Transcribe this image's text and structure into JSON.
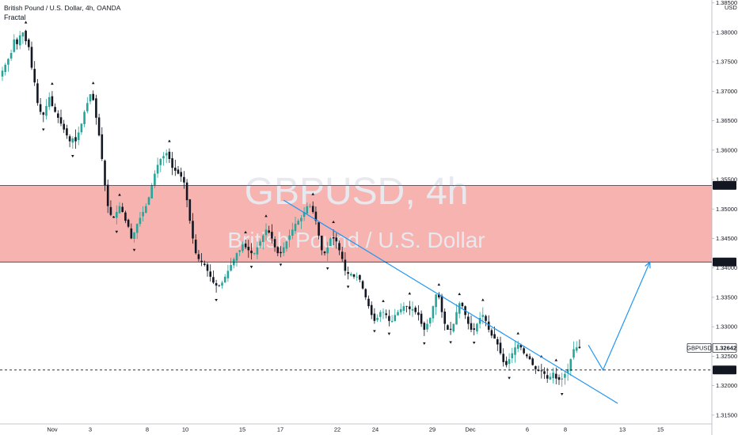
{
  "header": {
    "title": "British Pound / U.S. Dollar, 4h, OANDA",
    "indicator": "Fractal"
  },
  "watermark": {
    "symbol": "GBPUSD, 4h",
    "name": "British Pound / U.S. Dollar"
  },
  "currency": "USD",
  "colors": {
    "up": "#26a69a",
    "down": "#131722",
    "zone": "#f5a6a2",
    "trend": "#2196f3",
    "tag_dark": "#131722"
  },
  "chart_data": {
    "type": "candlestick",
    "y_axis": {
      "ticks": [
        "1.38500",
        "1.38000",
        "1.37500",
        "1.37000",
        "1.36500",
        "1.36000",
        "1.35500",
        "1.35000",
        "1.34500",
        "1.34000",
        "1.33500",
        "1.33000",
        "1.32500",
        "1.32000",
        "1.31500"
      ],
      "range": [
        1.3135,
        1.3855
      ]
    },
    "x_axis": {
      "ticks": [
        "Nov",
        "3",
        "8",
        "10",
        "15",
        "17",
        "22",
        "24",
        "29",
        "Dec",
        "6",
        "8",
        "13",
        "15"
      ]
    },
    "resistance_zone": {
      "top": 1.35401,
      "bottom": 1.341
    },
    "price_tags": [
      {
        "label": "1.35401",
        "value": 1.35401
      },
      {
        "label": "1.34100",
        "value": 1.341
      },
      {
        "label": "1.32642",
        "value": 1.32642,
        "symbol": "GBPUSD"
      },
      {
        "label": "1.32266",
        "value": 1.32266
      }
    ],
    "dashed_level": 1.32266,
    "last_price": 1.32642,
    "closes": [
      1.3735,
      1.3745,
      1.3755,
      1.3765,
      1.3788,
      1.378,
      1.3795,
      1.38,
      1.3785,
      1.3775,
      1.374,
      1.3715,
      1.368,
      1.3665,
      1.366,
      1.3675,
      1.369,
      1.3675,
      1.3665,
      1.3655,
      1.3645,
      1.3635,
      1.3625,
      1.3615,
      1.362,
      1.3615,
      1.363,
      1.3645,
      1.3665,
      1.368,
      1.3695,
      1.3685,
      1.3655,
      1.3625,
      1.3585,
      1.354,
      1.3505,
      1.349,
      1.3485,
      1.3495,
      1.3505,
      1.3495,
      1.348,
      1.347,
      1.345,
      1.346,
      1.3475,
      1.3485,
      1.3495,
      1.3505,
      1.352,
      1.354,
      1.356,
      1.3575,
      1.3585,
      1.359,
      1.3595,
      1.3585,
      1.357,
      1.3565,
      1.356,
      1.3555,
      1.3545,
      1.3515,
      1.348,
      1.345,
      1.3425,
      1.3415,
      1.341,
      1.3405,
      1.3395,
      1.3385,
      1.3375,
      1.337,
      1.337,
      1.3375,
      1.3385,
      1.3395,
      1.3405,
      1.3415,
      1.3425,
      1.343,
      1.344,
      1.3435,
      1.343,
      1.3425,
      1.3425,
      1.3435,
      1.3445,
      1.3455,
      1.3465,
      1.346,
      1.345,
      1.3435,
      1.3425,
      1.3425,
      1.3435,
      1.3445,
      1.3455,
      1.3465,
      1.3475,
      1.348,
      1.3485,
      1.3495,
      1.3505,
      1.3505,
      1.3495,
      1.348,
      1.3455,
      1.343,
      1.3425,
      1.3435,
      1.345,
      1.345,
      1.3445,
      1.343,
      1.3415,
      1.3395,
      1.339,
      1.339,
      1.3385,
      1.3385,
      1.338,
      1.3365,
      1.335,
      1.3335,
      1.332,
      1.331,
      1.3315,
      1.3325,
      1.3325,
      1.332,
      1.331,
      1.331,
      1.332,
      1.3325,
      1.333,
      1.3335,
      1.3335,
      1.333,
      1.333,
      1.3325,
      1.332,
      1.3305,
      1.3295,
      1.3305,
      1.3315,
      1.3335,
      1.3355,
      1.335,
      1.3325,
      1.3305,
      1.3295,
      1.3295,
      1.3305,
      1.3325,
      1.334,
      1.3335,
      1.332,
      1.3305,
      1.3295,
      1.3295,
      1.3305,
      1.3315,
      1.332,
      1.331,
      1.3295,
      1.3285,
      1.328,
      1.327,
      1.3255,
      1.324,
      1.3235,
      1.3245,
      1.3255,
      1.3265,
      1.327,
      1.3265,
      1.3255,
      1.325,
      1.3245,
      1.3235,
      1.3228,
      1.3225,
      1.3225,
      1.322,
      1.3212,
      1.3215,
      1.3222,
      1.3212,
      1.321,
      1.3212,
      1.322,
      1.3228,
      1.3245,
      1.3262,
      1.3265,
      1.3264
    ],
    "volatility": 0.0015,
    "annotations": [
      {
        "type": "trendline",
        "from": {
          "bar": 96,
          "value": 1.3515
        },
        "to": {
          "bar": 210,
          "value": 1.317
        }
      },
      {
        "type": "projection_arrow",
        "points": [
          {
            "bar": 200,
            "value": 1.3269
          },
          {
            "bar": 205,
            "value": 1.32266
          },
          {
            "bar": 221,
            "value": 1.341
          }
        ]
      }
    ]
  }
}
